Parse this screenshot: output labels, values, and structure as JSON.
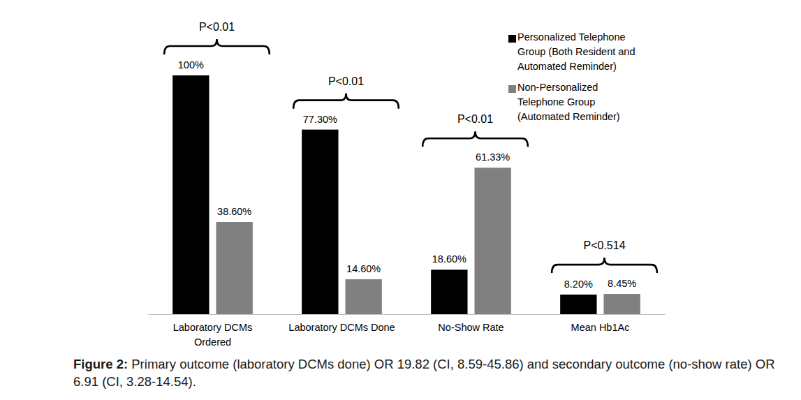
{
  "chart_data": {
    "type": "bar",
    "categories": [
      "Laboratory DCMs Ordered",
      "Laboratory DCMs Done",
      "No-Show Rate",
      "Mean Hb1Ac"
    ],
    "series": [
      {
        "name": "Personalized Telephone Group (Both Resident and Automated Reminder)",
        "color": "#000000",
        "values": [
          100,
          77.3,
          18.6,
          8.2
        ],
        "value_labels": [
          "100%",
          "77.30%",
          "18.60%",
          "8.20%"
        ]
      },
      {
        "name": "Non-Personalized Telephone Group (Automated Reminder)",
        "color": "#808080",
        "values": [
          38.6,
          14.6,
          61.33,
          8.45
        ],
        "value_labels": [
          "38.60%",
          "14.60%",
          "61.33%",
          "8.45%"
        ]
      }
    ],
    "p_values": [
      "P<0.01",
      "P<0.01",
      "P<0.01",
      "P<0.514"
    ],
    "ylim": [
      0,
      100
    ],
    "yticks": [],
    "tick_labels": "x",
    "data_labels": true,
    "grid": false,
    "legend": "top-right",
    "caption_label": "Figure 2:",
    "caption": "Primary outcome (laboratory DCMs done) OR 19.82 (CI, 8.59-45.86) and secondary outcome (no-show rate) OR 6.91 (CI, 3.28-14.54)."
  }
}
